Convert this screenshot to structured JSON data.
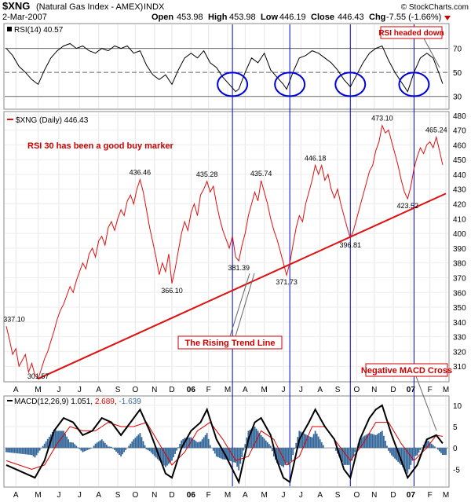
{
  "header": {
    "symbol": "$XNG",
    "name": "(Natural Gas Index - AMEX)",
    "exchange": "INDX",
    "copyright": "© StockCharts.com",
    "date": "2-Mar-2007",
    "open_label": "Open",
    "open": "453.98",
    "high_label": "High",
    "high": "453.98",
    "low_label": "Low",
    "low": "446.19",
    "close_label": "Close",
    "close": "446.43",
    "chg_label": "Chg",
    "chg": "-7.55 (-1.66%)"
  },
  "rsi_panel": {
    "legend": "RSI(14) 40.57",
    "yticks": [
      "70",
      "50",
      "30"
    ],
    "yvalues": [
      70,
      50,
      30
    ],
    "annotation": "RSI headed down"
  },
  "price_panel": {
    "legend": "$XNG (Daily) 446.43",
    "annotation_rsi": "RSI 30 has been a good buy marker",
    "annotation_trend": "The Rising Trend Line",
    "annotation_macd": "Negative MACD Cross",
    "yticks": [
      "480",
      "470",
      "460",
      "450",
      "440",
      "430",
      "420",
      "410",
      "400",
      "390",
      "380",
      "370",
      "360",
      "350",
      "340",
      "330",
      "320",
      "310"
    ]
  },
  "macd_panel": {
    "legend_label": "MACD(12,26,9)",
    "macd": "1.051",
    "signal": "2.689",
    "hist": "-1.639",
    "yticks": [
      "10",
      "5",
      "0",
      "-5"
    ]
  },
  "xaxis": {
    "labels": [
      "A",
      "M",
      "J",
      "J",
      "A",
      "S",
      "O",
      "N",
      "D",
      "06",
      "F",
      "M",
      "A",
      "M",
      "J",
      "J",
      "A",
      "S",
      "O",
      "N",
      "D",
      "07",
      "F",
      "M"
    ]
  },
  "colors": {
    "price": "#e01010",
    "trend": "#e01010",
    "vlines": "#0000cc",
    "circles": "#0000dd",
    "hist": "#336699",
    "signal": "#dd0000",
    "macd": "#000000",
    "annotation_box": "#cc0000"
  },
  "chart_data": {
    "type": "line",
    "title": "$XNG (Natural Gas Index - AMEX)",
    "price_ylim": [
      300,
      482
    ],
    "price_points": [
      [
        0,
        337.1
      ],
      [
        2,
        328
      ],
      [
        4,
        318
      ],
      [
        6,
        322
      ],
      [
        8,
        310
      ],
      [
        10,
        314
      ],
      [
        12,
        318
      ],
      [
        14,
        306
      ],
      [
        16,
        312
      ],
      [
        18,
        304
      ],
      [
        20,
        301.57
      ],
      [
        22,
        308
      ],
      [
        24,
        315
      ],
      [
        26,
        320
      ],
      [
        28,
        327
      ],
      [
        30,
        334
      ],
      [
        32,
        342
      ],
      [
        34,
        348
      ],
      [
        36,
        352
      ],
      [
        38,
        358
      ],
      [
        40,
        364
      ],
      [
        42,
        360
      ],
      [
        44,
        368
      ],
      [
        46,
        374
      ],
      [
        48,
        380
      ],
      [
        50,
        376
      ],
      [
        52,
        386
      ],
      [
        54,
        390
      ],
      [
        56,
        384
      ],
      [
        58,
        395
      ],
      [
        60,
        398
      ],
      [
        62,
        392
      ],
      [
        64,
        404
      ],
      [
        66,
        408
      ],
      [
        68,
        402
      ],
      [
        70,
        410
      ],
      [
        72,
        416
      ],
      [
        74,
        412
      ],
      [
        76,
        422
      ],
      [
        78,
        426
      ],
      [
        80,
        420
      ],
      [
        82,
        430
      ],
      [
        84,
        436.46
      ],
      [
        86,
        428
      ],
      [
        88,
        416
      ],
      [
        90,
        404
      ],
      [
        92,
        394
      ],
      [
        94,
        384
      ],
      [
        96,
        372
      ],
      [
        98,
        380
      ],
      [
        100,
        374
      ],
      [
        102,
        386
      ],
      [
        104,
        366.1
      ],
      [
        106,
        376
      ],
      [
        108,
        388
      ],
      [
        110,
        400
      ],
      [
        112,
        408
      ],
      [
        114,
        402
      ],
      [
        116,
        414
      ],
      [
        118,
        420
      ],
      [
        120,
        412
      ],
      [
        122,
        426
      ],
      [
        124,
        430
      ],
      [
        126,
        435.28
      ],
      [
        128,
        428
      ],
      [
        130,
        432
      ],
      [
        132,
        420
      ],
      [
        134,
        410
      ],
      [
        136,
        402
      ],
      [
        138,
        396
      ],
      [
        140,
        390
      ],
      [
        142,
        398
      ],
      [
        144,
        384
      ],
      [
        146,
        381.39
      ],
      [
        148,
        392
      ],
      [
        150,
        400
      ],
      [
        152,
        412
      ],
      [
        154,
        420
      ],
      [
        156,
        428
      ],
      [
        158,
        422
      ],
      [
        160,
        435.74
      ],
      [
        162,
        428
      ],
      [
        164,
        420
      ],
      [
        166,
        410
      ],
      [
        168,
        402
      ],
      [
        170,
        396
      ],
      [
        172,
        388
      ],
      [
        174,
        380
      ],
      [
        176,
        371.73
      ],
      [
        178,
        380
      ],
      [
        180,
        392
      ],
      [
        182,
        404
      ],
      [
        184,
        412
      ],
      [
        186,
        408
      ],
      [
        188,
        420
      ],
      [
        190,
        428
      ],
      [
        192,
        436
      ],
      [
        194,
        446.18
      ],
      [
        196,
        440
      ],
      [
        198,
        446
      ],
      [
        200,
        436
      ],
      [
        202,
        440
      ],
      [
        204,
        430
      ],
      [
        206,
        424
      ],
      [
        208,
        430
      ],
      [
        210,
        420
      ],
      [
        212,
        412
      ],
      [
        214,
        404
      ],
      [
        216,
        396.81
      ],
      [
        218,
        402
      ],
      [
        220,
        410
      ],
      [
        222,
        418
      ],
      [
        224,
        426
      ],
      [
        226,
        434
      ],
      [
        228,
        442
      ],
      [
        230,
        446
      ],
      [
        232,
        456
      ],
      [
        234,
        462
      ],
      [
        236,
        473.1
      ],
      [
        238,
        468
      ],
      [
        240,
        470
      ],
      [
        242,
        462
      ],
      [
        244,
        454
      ],
      [
        246,
        446
      ],
      [
        248,
        436
      ],
      [
        250,
        428
      ],
      [
        252,
        423.52
      ],
      [
        254,
        432
      ],
      [
        256,
        444
      ],
      [
        258,
        452
      ],
      [
        260,
        458
      ],
      [
        262,
        454
      ],
      [
        264,
        460
      ],
      [
        266,
        462
      ],
      [
        268,
        458
      ],
      [
        270,
        465.24
      ],
      [
        272,
        456
      ],
      [
        274,
        446.43
      ]
    ],
    "price_labels": [
      {
        "x": 0,
        "y": 337.1,
        "text": "337.10"
      },
      {
        "x": 20,
        "y": 301.57,
        "text": "301.57"
      },
      {
        "x": 84,
        "y": 436.46,
        "text": "436.46"
      },
      {
        "x": 104,
        "y": 366.1,
        "text": "366.10"
      },
      {
        "x": 126,
        "y": 435.28,
        "text": "435.28"
      },
      {
        "x": 146,
        "y": 381.39,
        "text": "381.39"
      },
      {
        "x": 160,
        "y": 435.74,
        "text": "435.74"
      },
      {
        "x": 176,
        "y": 371.73,
        "text": "371.73"
      },
      {
        "x": 194,
        "y": 446.18,
        "text": "446.18"
      },
      {
        "x": 216,
        "y": 396.81,
        "text": "396.81"
      },
      {
        "x": 236,
        "y": 473.1,
        "text": "473.10"
      },
      {
        "x": 252,
        "y": 423.52,
        "text": "423.52"
      },
      {
        "x": 270,
        "y": 465.24,
        "text": "465.24"
      }
    ],
    "trend_line": [
      [
        20,
        301.57
      ],
      [
        276,
        427
      ]
    ],
    "rsi_ylim": [
      20,
      90
    ],
    "rsi_points": [
      [
        0,
        70
      ],
      [
        4,
        64
      ],
      [
        8,
        55
      ],
      [
        12,
        50
      ],
      [
        16,
        44
      ],
      [
        20,
        40
      ],
      [
        24,
        52
      ],
      [
        28,
        62
      ],
      [
        32,
        68
      ],
      [
        36,
        72
      ],
      [
        40,
        74
      ],
      [
        44,
        70
      ],
      [
        48,
        72
      ],
      [
        52,
        68
      ],
      [
        56,
        66
      ],
      [
        60,
        70
      ],
      [
        64,
        68
      ],
      [
        68,
        72
      ],
      [
        72,
        70
      ],
      [
        76,
        72
      ],
      [
        80,
        66
      ],
      [
        84,
        68
      ],
      [
        88,
        56
      ],
      [
        92,
        48
      ],
      [
        96,
        44
      ],
      [
        100,
        48
      ],
      [
        104,
        40
      ],
      [
        108,
        52
      ],
      [
        112,
        62
      ],
      [
        116,
        66
      ],
      [
        120,
        62
      ],
      [
        124,
        68
      ],
      [
        128,
        58
      ],
      [
        132,
        54
      ],
      [
        136,
        46
      ],
      [
        140,
        40
      ],
      [
        144,
        34
      ],
      [
        146,
        36
      ],
      [
        150,
        50
      ],
      [
        154,
        62
      ],
      [
        158,
        58
      ],
      [
        162,
        66
      ],
      [
        166,
        52
      ],
      [
        170,
        46
      ],
      [
        174,
        40
      ],
      [
        176,
        36
      ],
      [
        180,
        50
      ],
      [
        184,
        62
      ],
      [
        188,
        64
      ],
      [
        192,
        68
      ],
      [
        196,
        66
      ],
      [
        200,
        62
      ],
      [
        204,
        58
      ],
      [
        208,
        52
      ],
      [
        212,
        44
      ],
      [
        216,
        38
      ],
      [
        220,
        48
      ],
      [
        224,
        58
      ],
      [
        228,
        66
      ],
      [
        232,
        70
      ],
      [
        236,
        72
      ],
      [
        240,
        60
      ],
      [
        244,
        50
      ],
      [
        248,
        42
      ],
      [
        252,
        34
      ],
      [
        256,
        50
      ],
      [
        260,
        62
      ],
      [
        264,
        66
      ],
      [
        268,
        62
      ],
      [
        272,
        48
      ],
      [
        274,
        40.57
      ]
    ],
    "rsi_circle_x": [
      142,
      178,
      216,
      256
    ],
    "macd_ylim": [
      -9,
      12
    ],
    "macd_points": [
      [
        0,
        -4
      ],
      [
        6,
        -5
      ],
      [
        12,
        -6
      ],
      [
        18,
        -7
      ],
      [
        24,
        -3
      ],
      [
        30,
        4
      ],
      [
        36,
        7
      ],
      [
        42,
        6
      ],
      [
        48,
        3
      ],
      [
        54,
        4
      ],
      [
        60,
        7
      ],
      [
        66,
        6
      ],
      [
        72,
        3
      ],
      [
        78,
        6
      ],
      [
        84,
        9
      ],
      [
        90,
        4
      ],
      [
        96,
        -2
      ],
      [
        100,
        -6
      ],
      [
        104,
        -7
      ],
      [
        110,
        0
      ],
      [
        116,
        4
      ],
      [
        122,
        6
      ],
      [
        126,
        9
      ],
      [
        132,
        2
      ],
      [
        138,
        -2
      ],
      [
        142,
        -5
      ],
      [
        146,
        -8
      ],
      [
        152,
        2
      ],
      [
        156,
        6
      ],
      [
        160,
        7
      ],
      [
        166,
        3
      ],
      [
        170,
        -3
      ],
      [
        174,
        -7
      ],
      [
        178,
        -8
      ],
      [
        184,
        2
      ],
      [
        190,
        6
      ],
      [
        194,
        9
      ],
      [
        200,
        5
      ],
      [
        206,
        2
      ],
      [
        212,
        -5
      ],
      [
        216,
        -7
      ],
      [
        222,
        2
      ],
      [
        228,
        7
      ],
      [
        232,
        9
      ],
      [
        236,
        10
      ],
      [
        242,
        3
      ],
      [
        248,
        -3
      ],
      [
        252,
        -7
      ],
      [
        258,
        -4
      ],
      [
        264,
        2
      ],
      [
        270,
        3
      ],
      [
        274,
        1.051
      ]
    ],
    "signal_points": [
      [
        0,
        -3
      ],
      [
        8,
        -4
      ],
      [
        16,
        -5
      ],
      [
        24,
        -4
      ],
      [
        32,
        1
      ],
      [
        40,
        5
      ],
      [
        48,
        4
      ],
      [
        56,
        4
      ],
      [
        64,
        6
      ],
      [
        72,
        5
      ],
      [
        80,
        5
      ],
      [
        88,
        6
      ],
      [
        96,
        1
      ],
      [
        104,
        -4
      ],
      [
        112,
        -1
      ],
      [
        120,
        4
      ],
      [
        128,
        6
      ],
      [
        136,
        2
      ],
      [
        144,
        -3
      ],
      [
        152,
        -2
      ],
      [
        160,
        4
      ],
      [
        168,
        2
      ],
      [
        176,
        -4
      ],
      [
        184,
        -2
      ],
      [
        192,
        5
      ],
      [
        200,
        5
      ],
      [
        208,
        1
      ],
      [
        216,
        -3
      ],
      [
        224,
        1
      ],
      [
        232,
        6
      ],
      [
        240,
        6
      ],
      [
        248,
        1
      ],
      [
        256,
        -3
      ],
      [
        264,
        0
      ],
      [
        270,
        3
      ],
      [
        274,
        2.689
      ]
    ],
    "xlabel": "",
    "ylabel": "",
    "x_total": 276,
    "x_label_positions": [
      6,
      20,
      33,
      46,
      58,
      70,
      81,
      93,
      104,
      116,
      127,
      139,
      150,
      162,
      174,
      185,
      197,
      208,
      220,
      231,
      243,
      254,
      266,
      276
    ]
  }
}
